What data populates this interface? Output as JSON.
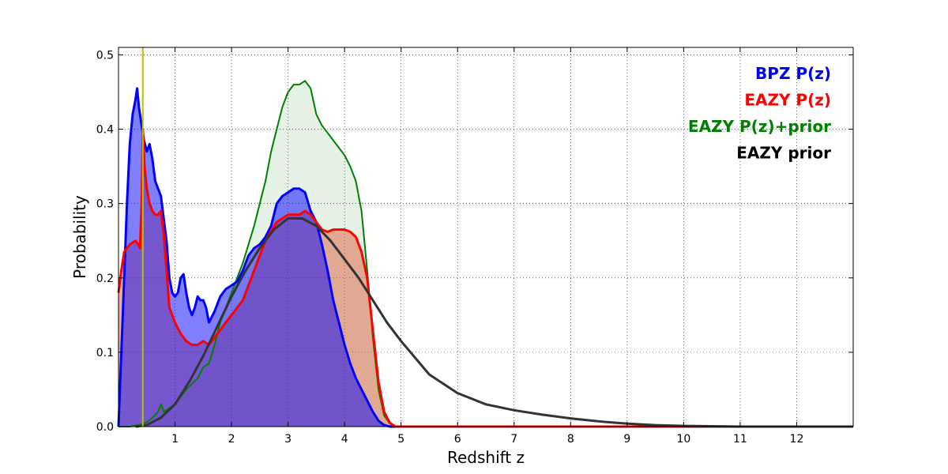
{
  "chart_data": {
    "type": "line",
    "title": "",
    "xlabel": "Redshift z",
    "ylabel": "Probability",
    "xlim": [
      0,
      13
    ],
    "ylim": [
      0,
      0.51
    ],
    "x_ticks": [
      1,
      2,
      3,
      4,
      5,
      6,
      7,
      8,
      9,
      10,
      11,
      12
    ],
    "y_ticks": [
      0.0,
      0.1,
      0.2,
      0.3,
      0.4,
      0.5
    ],
    "y_tick_labels": [
      "0.0",
      "0.1",
      "0.2",
      "0.3",
      "0.4",
      "0.5"
    ],
    "grid": true,
    "legend_placement": "top-right",
    "vertical_line": {
      "x": 0.43,
      "color": "#bfbf00"
    },
    "series": [
      {
        "name": "BPZ P(z)",
        "color": "#0000ff",
        "fill_color": "#0000ff",
        "points": [
          [
            0,
            0
          ],
          [
            0.05,
            0.1
          ],
          [
            0.1,
            0.2
          ],
          [
            0.15,
            0.3
          ],
          [
            0.2,
            0.38
          ],
          [
            0.25,
            0.42
          ],
          [
            0.3,
            0.44
          ],
          [
            0.33,
            0.455
          ],
          [
            0.36,
            0.43
          ],
          [
            0.4,
            0.41
          ],
          [
            0.45,
            0.385
          ],
          [
            0.5,
            0.37
          ],
          [
            0.55,
            0.38
          ],
          [
            0.6,
            0.36
          ],
          [
            0.65,
            0.33
          ],
          [
            0.7,
            0.32
          ],
          [
            0.75,
            0.31
          ],
          [
            0.8,
            0.28
          ],
          [
            0.85,
            0.25
          ],
          [
            0.9,
            0.2
          ],
          [
            0.95,
            0.18
          ],
          [
            1.0,
            0.175
          ],
          [
            1.05,
            0.18
          ],
          [
            1.1,
            0.2
          ],
          [
            1.15,
            0.205
          ],
          [
            1.2,
            0.18
          ],
          [
            1.25,
            0.16
          ],
          [
            1.3,
            0.15
          ],
          [
            1.35,
            0.16
          ],
          [
            1.4,
            0.175
          ],
          [
            1.45,
            0.17
          ],
          [
            1.5,
            0.17
          ],
          [
            1.55,
            0.16
          ],
          [
            1.6,
            0.14
          ],
          [
            1.7,
            0.155
          ],
          [
            1.8,
            0.175
          ],
          [
            1.9,
            0.185
          ],
          [
            2.0,
            0.19
          ],
          [
            2.1,
            0.195
          ],
          [
            2.2,
            0.21
          ],
          [
            2.3,
            0.23
          ],
          [
            2.4,
            0.24
          ],
          [
            2.5,
            0.245
          ],
          [
            2.6,
            0.255
          ],
          [
            2.7,
            0.27
          ],
          [
            2.8,
            0.3
          ],
          [
            2.9,
            0.31
          ],
          [
            3.0,
            0.315
          ],
          [
            3.1,
            0.32
          ],
          [
            3.2,
            0.32
          ],
          [
            3.3,
            0.315
          ],
          [
            3.4,
            0.29
          ],
          [
            3.5,
            0.275
          ],
          [
            3.6,
            0.245
          ],
          [
            3.7,
            0.21
          ],
          [
            3.8,
            0.17
          ],
          [
            3.9,
            0.14
          ],
          [
            4.0,
            0.11
          ],
          [
            4.1,
            0.085
          ],
          [
            4.2,
            0.065
          ],
          [
            4.3,
            0.05
          ],
          [
            4.4,
            0.035
          ],
          [
            4.5,
            0.02
          ],
          [
            4.6,
            0.008
          ],
          [
            4.7,
            0.002
          ],
          [
            4.8,
            0
          ],
          [
            13,
            0
          ]
        ]
      },
      {
        "name": "EAZY P(z)",
        "color": "#ff0000",
        "fill_color": "#e06040",
        "points": [
          [
            0,
            0.18
          ],
          [
            0.05,
            0.21
          ],
          [
            0.1,
            0.235
          ],
          [
            0.2,
            0.245
          ],
          [
            0.3,
            0.25
          ],
          [
            0.35,
            0.245
          ],
          [
            0.38,
            0.24
          ],
          [
            0.41,
            0.3
          ],
          [
            0.43,
            0.4
          ],
          [
            0.46,
            0.35
          ],
          [
            0.5,
            0.32
          ],
          [
            0.55,
            0.3
          ],
          [
            0.6,
            0.29
          ],
          [
            0.65,
            0.285
          ],
          [
            0.7,
            0.285
          ],
          [
            0.75,
            0.29
          ],
          [
            0.8,
            0.26
          ],
          [
            0.85,
            0.21
          ],
          [
            0.9,
            0.16
          ],
          [
            1.0,
            0.14
          ],
          [
            1.1,
            0.125
          ],
          [
            1.2,
            0.115
          ],
          [
            1.3,
            0.11
          ],
          [
            1.4,
            0.11
          ],
          [
            1.5,
            0.115
          ],
          [
            1.6,
            0.11
          ],
          [
            1.7,
            0.12
          ],
          [
            1.8,
            0.13
          ],
          [
            1.9,
            0.14
          ],
          [
            2.0,
            0.15
          ],
          [
            2.2,
            0.17
          ],
          [
            2.4,
            0.21
          ],
          [
            2.6,
            0.25
          ],
          [
            2.8,
            0.275
          ],
          [
            3.0,
            0.285
          ],
          [
            3.2,
            0.285
          ],
          [
            3.3,
            0.29
          ],
          [
            3.4,
            0.285
          ],
          [
            3.5,
            0.275
          ],
          [
            3.6,
            0.265
          ],
          [
            3.7,
            0.262
          ],
          [
            3.8,
            0.265
          ],
          [
            3.9,
            0.265
          ],
          [
            4.0,
            0.265
          ],
          [
            4.1,
            0.262
          ],
          [
            4.2,
            0.255
          ],
          [
            4.3,
            0.235
          ],
          [
            4.4,
            0.2
          ],
          [
            4.5,
            0.13
          ],
          [
            4.6,
            0.06
          ],
          [
            4.7,
            0.02
          ],
          [
            4.8,
            0.005
          ],
          [
            4.9,
            0
          ],
          [
            13,
            0
          ]
        ]
      },
      {
        "name": "EAZY P(z)+prior",
        "color": "#008000",
        "fill_color": "#008000",
        "points": [
          [
            0,
            0
          ],
          [
            0.2,
            0
          ],
          [
            0.4,
            0.003
          ],
          [
            0.5,
            0.006
          ],
          [
            0.6,
            0.012
          ],
          [
            0.7,
            0.02
          ],
          [
            0.75,
            0.03
          ],
          [
            0.8,
            0.02
          ],
          [
            1.0,
            0.03
          ],
          [
            1.2,
            0.05
          ],
          [
            1.4,
            0.065
          ],
          [
            1.5,
            0.08
          ],
          [
            1.6,
            0.085
          ],
          [
            1.7,
            0.11
          ],
          [
            1.8,
            0.14
          ],
          [
            2.0,
            0.18
          ],
          [
            2.2,
            0.22
          ],
          [
            2.4,
            0.27
          ],
          [
            2.6,
            0.33
          ],
          [
            2.7,
            0.37
          ],
          [
            2.8,
            0.4
          ],
          [
            2.9,
            0.43
          ],
          [
            3.0,
            0.45
          ],
          [
            3.1,
            0.46
          ],
          [
            3.2,
            0.46
          ],
          [
            3.3,
            0.465
          ],
          [
            3.4,
            0.455
          ],
          [
            3.5,
            0.42
          ],
          [
            3.6,
            0.405
          ],
          [
            3.7,
            0.395
          ],
          [
            3.8,
            0.385
          ],
          [
            3.9,
            0.375
          ],
          [
            4.0,
            0.365
          ],
          [
            4.1,
            0.35
          ],
          [
            4.2,
            0.33
          ],
          [
            4.3,
            0.29
          ],
          [
            4.4,
            0.21
          ],
          [
            4.5,
            0.12
          ],
          [
            4.6,
            0.05
          ],
          [
            4.7,
            0.015
          ],
          [
            4.8,
            0.004
          ],
          [
            4.9,
            0
          ],
          [
            13,
            0
          ]
        ]
      },
      {
        "name": "EAZY prior",
        "color": "#333333",
        "fill_color": "",
        "points": [
          [
            0.3,
            0
          ],
          [
            0.5,
            0.002
          ],
          [
            0.75,
            0.012
          ],
          [
            1.0,
            0.03
          ],
          [
            1.25,
            0.06
          ],
          [
            1.5,
            0.095
          ],
          [
            1.75,
            0.135
          ],
          [
            2.0,
            0.175
          ],
          [
            2.25,
            0.21
          ],
          [
            2.5,
            0.24
          ],
          [
            2.75,
            0.265
          ],
          [
            3.0,
            0.28
          ],
          [
            3.25,
            0.28
          ],
          [
            3.5,
            0.27
          ],
          [
            3.75,
            0.25
          ],
          [
            4.0,
            0.225
          ],
          [
            4.25,
            0.2
          ],
          [
            4.5,
            0.17
          ],
          [
            4.75,
            0.14
          ],
          [
            5.0,
            0.115
          ],
          [
            5.5,
            0.07
          ],
          [
            6.0,
            0.045
          ],
          [
            6.5,
            0.03
          ],
          [
            7.0,
            0.022
          ],
          [
            7.5,
            0.016
          ],
          [
            8.0,
            0.011
          ],
          [
            8.5,
            0.007
          ],
          [
            9.0,
            0.004
          ],
          [
            9.5,
            0.002
          ],
          [
            10,
            0.001
          ],
          [
            11,
            0
          ],
          [
            13,
            0
          ]
        ]
      }
    ]
  }
}
